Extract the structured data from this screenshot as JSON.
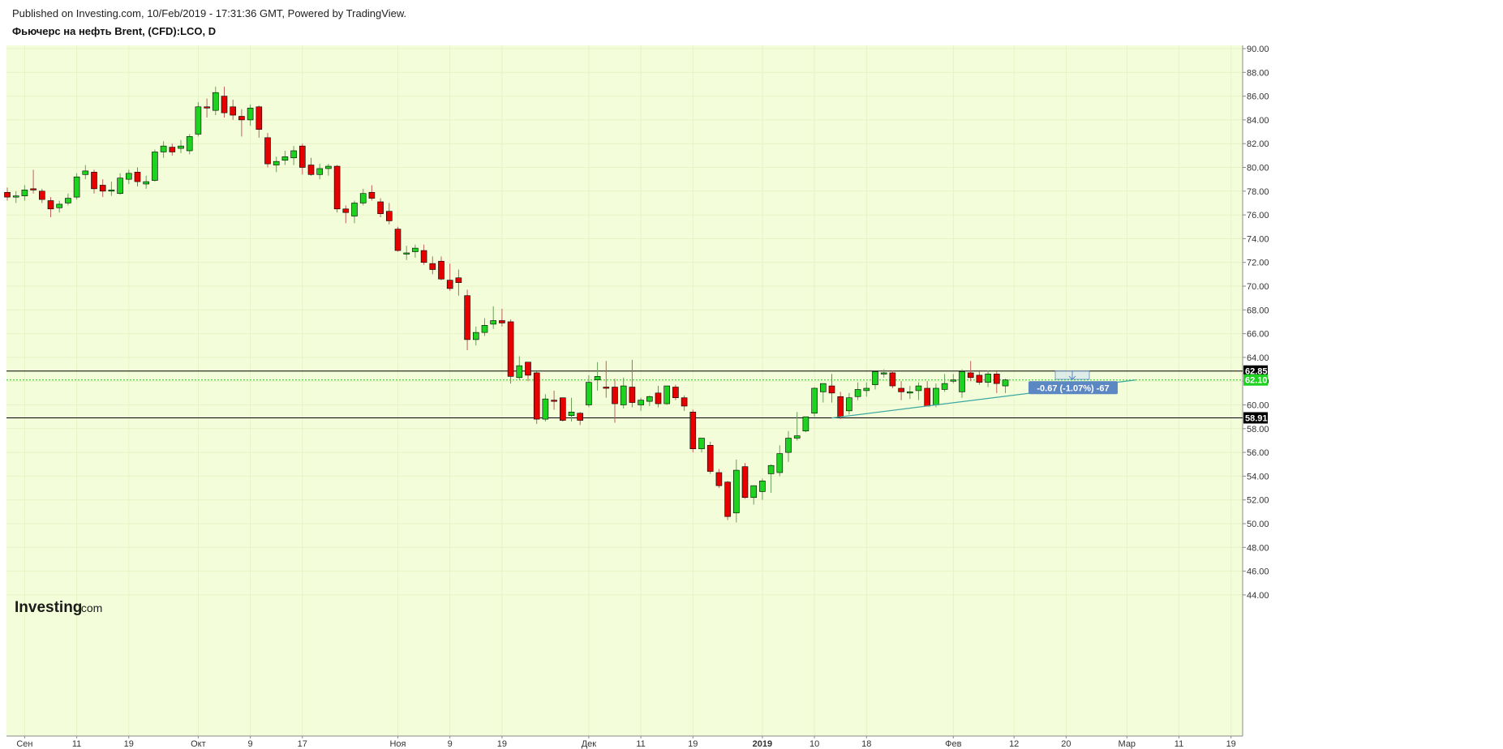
{
  "header": {
    "published": "Published on Investing.com, 10/Feb/2019 - 17:31:36 GMT, Powered by TradingView.",
    "symbol": "Фьючерс на нефть Brent, (CFD):LCO, D"
  },
  "logo": {
    "main": "Investing",
    "suffix": ".com"
  },
  "colors": {
    "background": "#f4fdd9",
    "up": "#1ed320",
    "down": "#e60000",
    "trendline": "#3aa8a0",
    "measure": "#5b87c3"
  },
  "chart_data": {
    "type": "candlestick",
    "title": "Фьючерс на нефть Brent, (CFD):LCO, D",
    "ylim": [
      43,
      91
    ],
    "y_ticks": [
      "44.00",
      "46.00",
      "48.00",
      "50.00",
      "52.00",
      "54.00",
      "56.00",
      "58.00",
      "60.00",
      "62.00",
      "64.00",
      "66.00",
      "68.00",
      "70.00",
      "72.00",
      "74.00",
      "76.00",
      "78.00",
      "80.00",
      "82.00",
      "84.00",
      "86.00",
      "88.00",
      "90.00"
    ],
    "x_tick_labels": [
      {
        "label": "Сен",
        "bar": 2
      },
      {
        "label": "11",
        "bar": 8
      },
      {
        "label": "19",
        "bar": 14
      },
      {
        "label": "Окт",
        "bar": 22
      },
      {
        "label": "9",
        "bar": 28
      },
      {
        "label": "17",
        "bar": 34
      },
      {
        "label": "Ноя",
        "bar": 45
      },
      {
        "label": "9",
        "bar": 51
      },
      {
        "label": "19",
        "bar": 57
      },
      {
        "label": "Дек",
        "bar": 67
      },
      {
        "label": "11",
        "bar": 73
      },
      {
        "label": "19",
        "bar": 79
      },
      {
        "label": "2019",
        "bar": 87
      },
      {
        "label": "10",
        "bar": 93
      },
      {
        "label": "18",
        "bar": 99
      },
      {
        "label": "Фев",
        "bar": 109
      },
      {
        "label": "12",
        "bar": 116
      },
      {
        "label": "20",
        "bar": 122
      },
      {
        "label": "Мар",
        "bar": 129
      },
      {
        "label": "11",
        "bar": 135
      },
      {
        "label": "19",
        "bar": 141
      }
    ],
    "bold_x_labels": [
      "2019"
    ],
    "candles": [
      [
        77.9,
        78.3,
        77.2,
        77.5
      ],
      [
        77.5,
        78.0,
        77.0,
        77.6
      ],
      [
        77.6,
        78.5,
        77.2,
        78.1
      ],
      [
        78.2,
        79.8,
        77.8,
        78.1
      ],
      [
        78.0,
        78.2,
        77.0,
        77.3
      ],
      [
        77.2,
        77.5,
        75.8,
        76.5
      ],
      [
        76.6,
        77.2,
        76.2,
        76.9
      ],
      [
        77.0,
        77.8,
        76.8,
        77.4
      ],
      [
        77.5,
        79.5,
        77.3,
        79.2
      ],
      [
        79.4,
        80.2,
        79.0,
        79.7
      ],
      [
        79.6,
        79.8,
        77.8,
        78.2
      ],
      [
        78.5,
        79.0,
        77.5,
        78.0
      ],
      [
        78.0,
        78.8,
        77.6,
        78.1
      ],
      [
        77.8,
        79.5,
        77.7,
        79.1
      ],
      [
        79.0,
        79.8,
        78.6,
        79.5
      ],
      [
        79.6,
        80.0,
        78.4,
        78.8
      ],
      [
        78.6,
        79.3,
        78.2,
        78.8
      ],
      [
        78.9,
        81.5,
        78.8,
        81.3
      ],
      [
        81.3,
        82.2,
        80.8,
        81.8
      ],
      [
        81.7,
        82.0,
        81.0,
        81.3
      ],
      [
        81.6,
        82.3,
        81.2,
        81.8
      ],
      [
        81.4,
        82.8,
        81.1,
        82.6
      ],
      [
        82.8,
        85.5,
        82.6,
        85.1
      ],
      [
        85.1,
        85.8,
        84.2,
        85.0
      ],
      [
        84.8,
        86.8,
        84.4,
        86.3
      ],
      [
        86.0,
        86.8,
        84.2,
        84.6
      ],
      [
        85.1,
        85.7,
        84.0,
        84.4
      ],
      [
        84.3,
        84.9,
        82.6,
        84.0
      ],
      [
        84.0,
        85.3,
        83.5,
        85.0
      ],
      [
        85.1,
        85.2,
        82.5,
        83.2
      ],
      [
        82.5,
        82.9,
        80.0,
        80.3
      ],
      [
        80.2,
        80.9,
        79.6,
        80.5
      ],
      [
        80.6,
        81.4,
        80.2,
        80.9
      ],
      [
        80.8,
        81.8,
        80.2,
        81.4
      ],
      [
        81.8,
        82.0,
        79.4,
        80.0
      ],
      [
        80.2,
        80.8,
        79.3,
        79.4
      ],
      [
        79.4,
        80.3,
        79.0,
        79.9
      ],
      [
        79.9,
        80.3,
        79.3,
        80.1
      ],
      [
        80.1,
        80.2,
        76.2,
        76.5
      ],
      [
        76.5,
        76.8,
        75.3,
        76.2
      ],
      [
        75.9,
        77.2,
        75.3,
        77.0
      ],
      [
        77.0,
        78.2,
        76.8,
        77.8
      ],
      [
        77.9,
        78.5,
        77.2,
        77.4
      ],
      [
        77.1,
        77.4,
        75.8,
        76.1
      ],
      [
        76.3,
        77.0,
        75.2,
        75.5
      ],
      [
        74.8,
        75.0,
        72.9,
        73.0
      ],
      [
        72.8,
        73.4,
        72.2,
        72.8
      ],
      [
        72.9,
        73.5,
        72.4,
        73.2
      ],
      [
        73.0,
        73.5,
        71.8,
        72.0
      ],
      [
        71.9,
        72.5,
        71.0,
        71.4
      ],
      [
        72.1,
        72.5,
        70.5,
        70.6
      ],
      [
        70.5,
        71.9,
        69.6,
        69.8
      ],
      [
        70.7,
        71.4,
        69.2,
        70.3
      ],
      [
        69.2,
        69.7,
        64.6,
        65.5
      ],
      [
        65.5,
        66.6,
        65.0,
        66.1
      ],
      [
        66.1,
        67.3,
        65.8,
        66.7
      ],
      [
        66.8,
        68.3,
        66.4,
        67.1
      ],
      [
        67.1,
        68.1,
        66.6,
        66.9
      ],
      [
        67.0,
        67.2,
        61.8,
        62.4
      ],
      [
        62.3,
        64.1,
        62.1,
        63.3
      ],
      [
        63.6,
        63.6,
        62.0,
        62.5
      ],
      [
        62.7,
        62.8,
        58.4,
        58.8
      ],
      [
        58.8,
        60.9,
        58.6,
        60.5
      ],
      [
        60.4,
        61.2,
        59.6,
        60.3
      ],
      [
        60.6,
        60.6,
        58.6,
        58.7
      ],
      [
        59.1,
        60.6,
        58.6,
        59.4
      ],
      [
        59.3,
        59.4,
        58.3,
        58.7
      ],
      [
        60.0,
        62.5,
        59.8,
        61.9
      ],
      [
        62.1,
        63.6,
        61.2,
        62.4
      ],
      [
        61.5,
        63.7,
        60.6,
        61.4
      ],
      [
        61.5,
        62.2,
        58.5,
        60.1
      ],
      [
        60.0,
        62.3,
        59.7,
        61.6
      ],
      [
        61.5,
        63.8,
        59.8,
        60.2
      ],
      [
        60.0,
        60.6,
        59.5,
        60.4
      ],
      [
        60.3,
        60.8,
        59.9,
        60.7
      ],
      [
        61.0,
        61.6,
        59.8,
        60.1
      ],
      [
        60.1,
        61.5,
        60.0,
        61.6
      ],
      [
        61.5,
        61.7,
        60.4,
        60.6
      ],
      [
        60.6,
        60.8,
        59.5,
        59.9
      ],
      [
        59.4,
        59.6,
        56.0,
        56.3
      ],
      [
        56.3,
        57.2,
        56.0,
        57.2
      ],
      [
        56.6,
        56.9,
        54.2,
        54.4
      ],
      [
        54.3,
        54.6,
        53.0,
        53.2
      ],
      [
        53.5,
        53.6,
        50.3,
        50.6
      ],
      [
        50.9,
        55.4,
        50.1,
        54.5
      ],
      [
        54.8,
        55.1,
        52.1,
        52.2
      ],
      [
        52.2,
        53.1,
        51.6,
        53.2
      ],
      [
        52.7,
        53.8,
        52.0,
        53.6
      ],
      [
        54.2,
        55.0,
        52.6,
        54.9
      ],
      [
        54.3,
        56.6,
        54.0,
        55.9
      ],
      [
        56.0,
        57.8,
        55.2,
        57.2
      ],
      [
        57.2,
        59.4,
        57.0,
        57.4
      ],
      [
        57.8,
        58.9,
        57.7,
        59.0
      ],
      [
        59.3,
        61.5,
        59.0,
        61.4
      ],
      [
        61.1,
        61.7,
        60.2,
        61.8
      ],
      [
        61.6,
        62.6,
        60.2,
        61.0
      ],
      [
        60.7,
        61.1,
        58.8,
        59.0
      ],
      [
        59.5,
        61.0,
        59.2,
        60.6
      ],
      [
        60.7,
        61.9,
        60.4,
        61.3
      ],
      [
        61.2,
        61.9,
        60.7,
        61.4
      ],
      [
        61.7,
        62.7,
        61.3,
        62.8
      ],
      [
        62.6,
        63.0,
        62.3,
        62.7
      ],
      [
        62.7,
        62.9,
        61.4,
        61.6
      ],
      [
        61.4,
        62.0,
        60.4,
        61.1
      ],
      [
        61.0,
        61.6,
        60.5,
        61.1
      ],
      [
        61.2,
        61.9,
        60.4,
        61.6
      ],
      [
        61.4,
        62.0,
        59.9,
        59.9
      ],
      [
        60.0,
        61.8,
        59.8,
        61.4
      ],
      [
        61.3,
        62.6,
        61.1,
        61.8
      ],
      [
        62.1,
        62.6,
        61.8,
        62.1
      ],
      [
        61.1,
        63.0,
        60.6,
        62.8
      ],
      [
        62.7,
        63.7,
        62.0,
        62.3
      ],
      [
        62.5,
        62.8,
        61.7,
        61.9
      ],
      [
        61.9,
        62.9,
        61.5,
        62.6
      ],
      [
        62.6,
        62.8,
        61.0,
        61.8
      ],
      [
        61.6,
        62.2,
        61.0,
        62.1
      ]
    ],
    "horizontal_lines": [
      {
        "price": 62.85,
        "label": "62.85",
        "style": "solid",
        "color": "#000000"
      },
      {
        "price": 58.91,
        "label": "58.91",
        "style": "solid",
        "color": "#000000"
      },
      {
        "price": 62.1,
        "label": "62.10",
        "style": "dotted",
        "color": "#1ed320",
        "tag_color": "#1ed320"
      }
    ],
    "trendline": {
      "from": {
        "bar": 95,
        "price": 58.9
      },
      "to": {
        "bar": 130,
        "price": 62.1
      }
    },
    "measure_label": "-0.67 (-1.07%) -67",
    "grid": true,
    "axis_side": "right"
  }
}
